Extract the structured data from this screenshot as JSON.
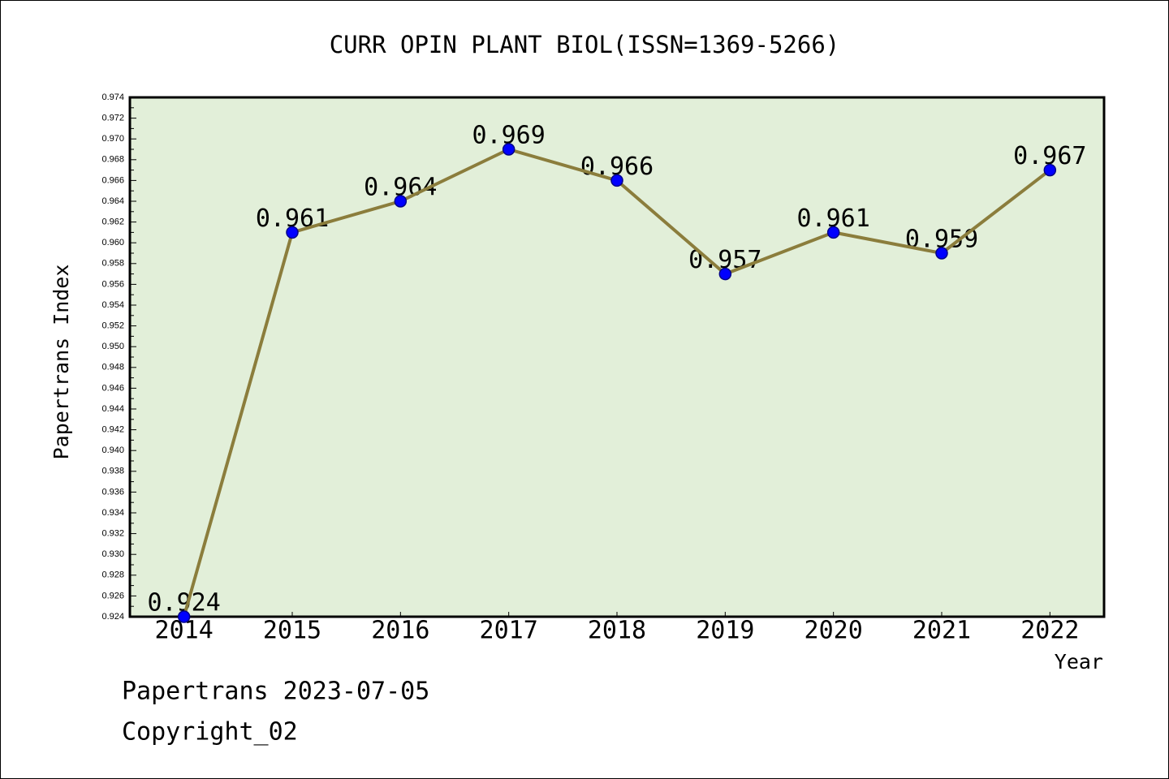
{
  "footer": {
    "line1": "Papertrans 2023-07-05",
    "line2": "Copyright_02"
  },
  "colors": {
    "plot_background": "#e2efd9",
    "line": "#8b7d3c",
    "marker_fill": "#0000ff",
    "marker_edge": "#00008b",
    "axis": "#000000"
  },
  "chart_data": {
    "type": "line",
    "title": "CURR OPIN PLANT BIOL(ISSN=1369-5266)",
    "xlabel": "Year",
    "ylabel": "Papertrans Index",
    "categories": [
      "2014",
      "2015",
      "2016",
      "2017",
      "2018",
      "2019",
      "2020",
      "2021",
      "2022"
    ],
    "series": [
      {
        "values": [
          0.924,
          0.961,
          0.964,
          0.969,
          0.966,
          0.957,
          0.961,
          0.959,
          0.967
        ]
      }
    ],
    "data_labels": [
      "0.924",
      "0.961",
      "0.964",
      "0.969",
      "0.966",
      "0.957",
      "0.961",
      "0.959",
      "0.967"
    ],
    "ylim": [
      0.924,
      0.974
    ],
    "y_tick_labels": [
      "0.924",
      "0.926",
      "0.928",
      "0.930",
      "0.932",
      "0.934",
      "0.936",
      "0.938",
      "0.940",
      "0.942",
      "0.944",
      "0.946",
      "0.948",
      "0.950",
      "0.952",
      "0.954",
      "0.956",
      "0.958",
      "0.960",
      "0.962",
      "0.964",
      "0.966",
      "0.968",
      "0.970",
      "0.972",
      "0.974"
    ],
    "grid": false,
    "legend": "none"
  }
}
